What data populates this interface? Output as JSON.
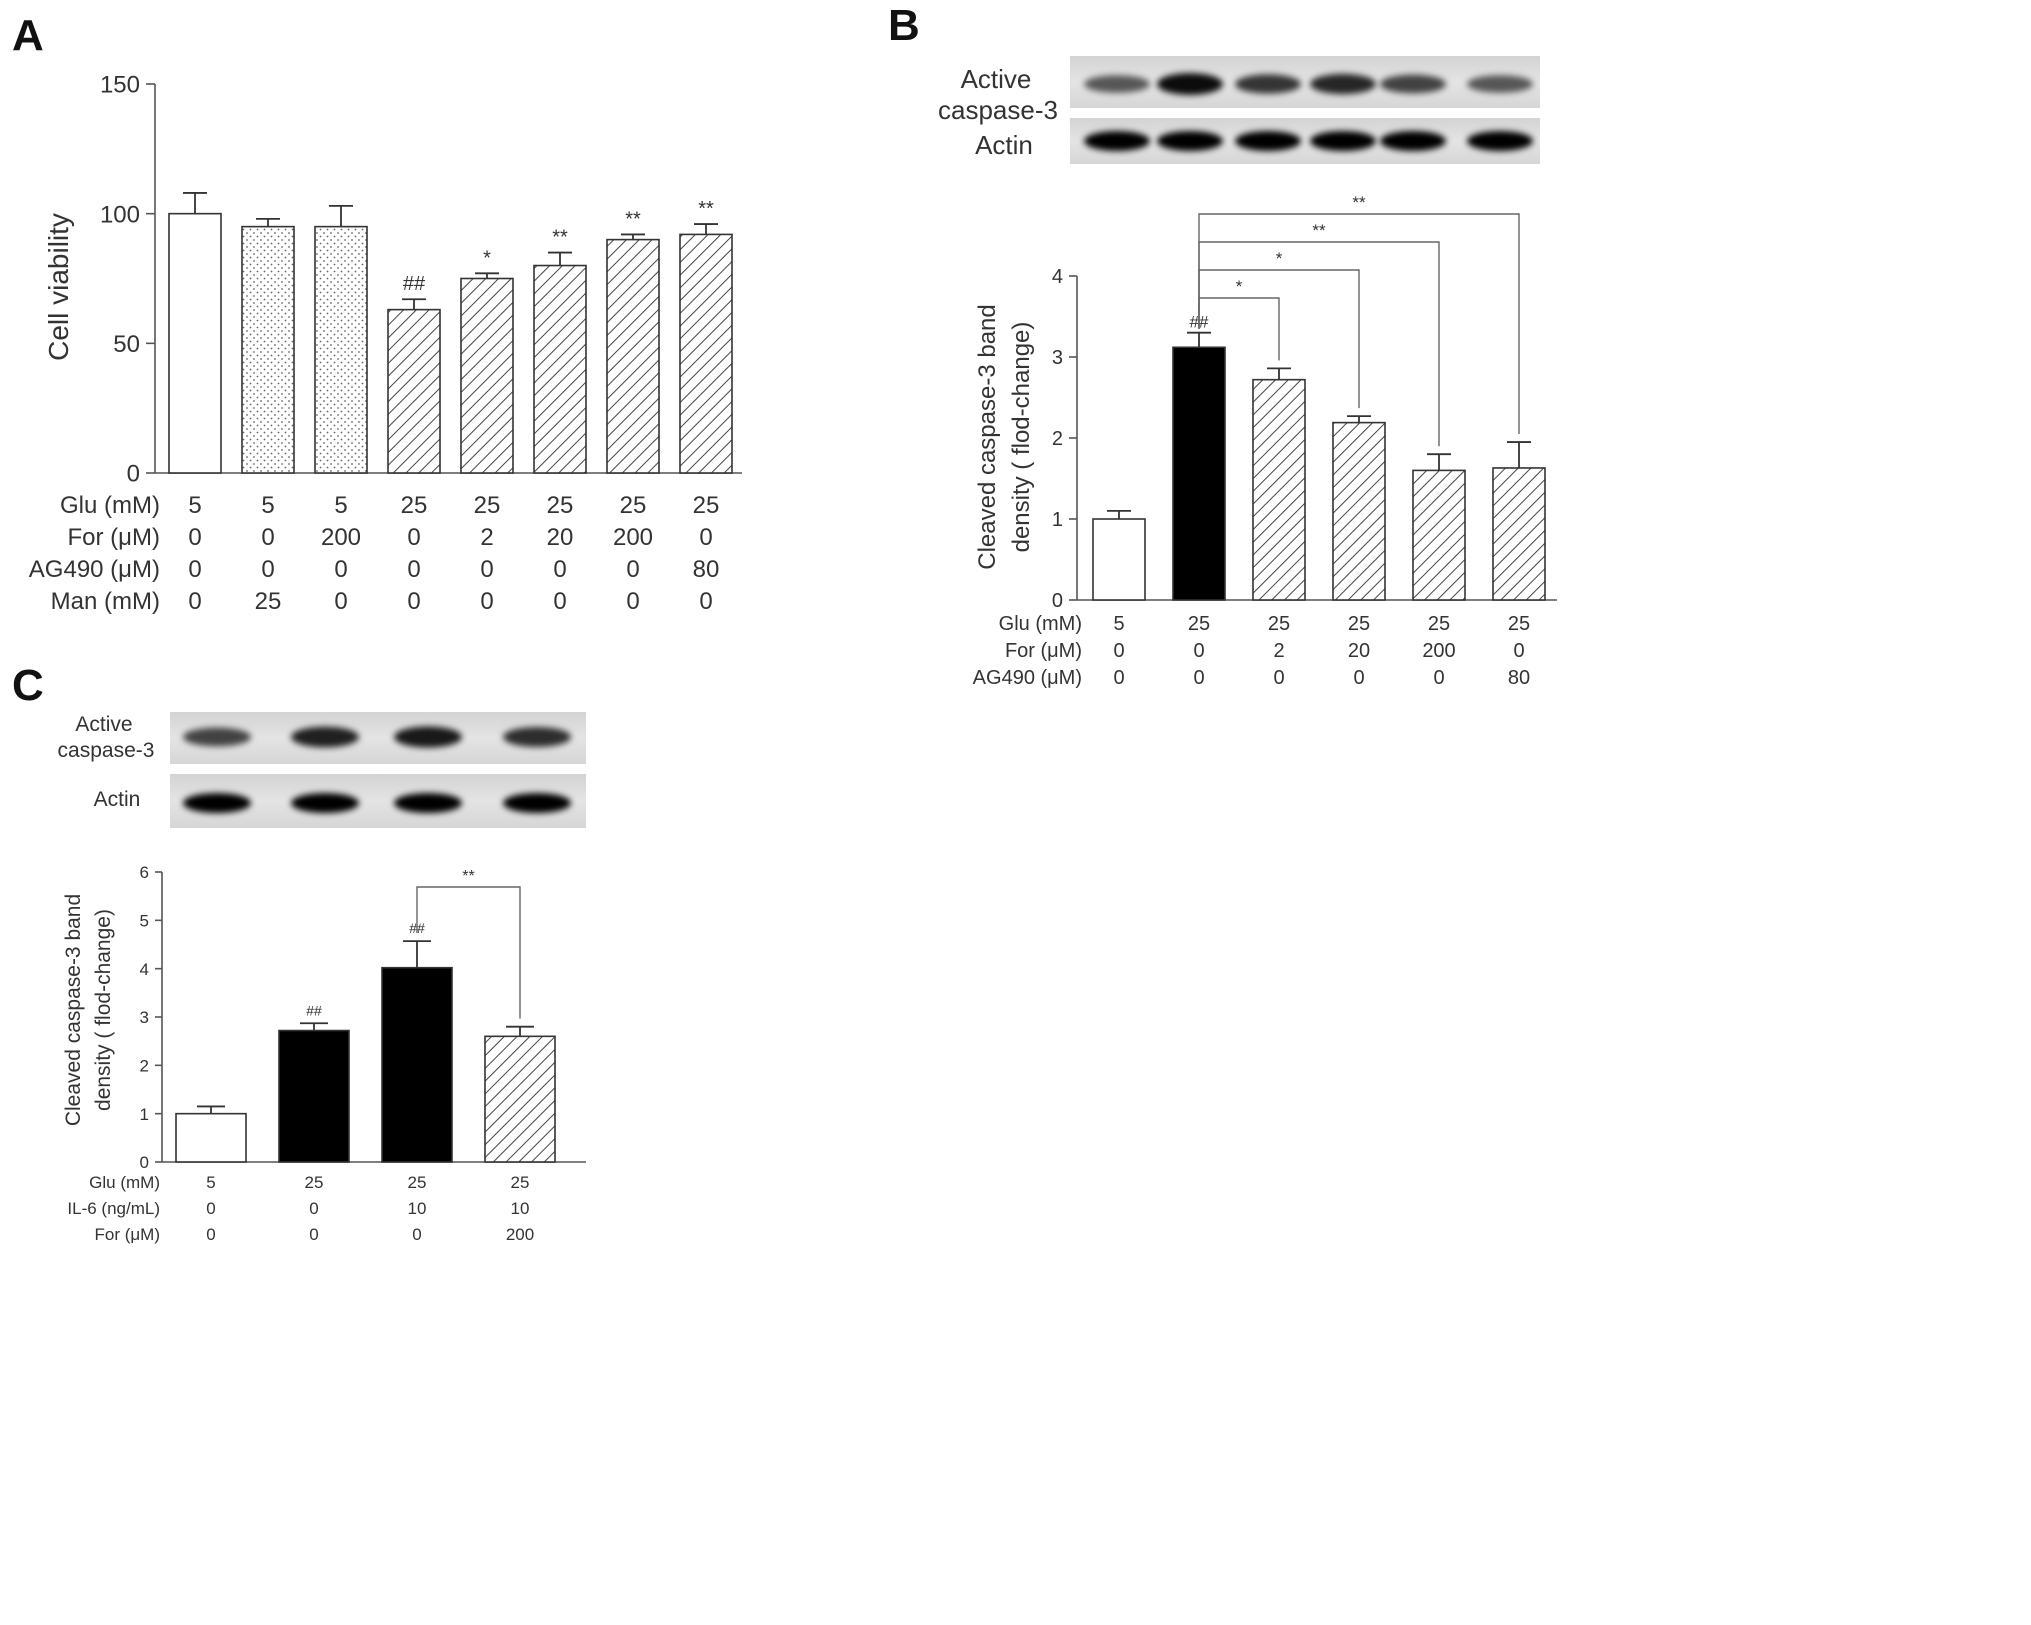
{
  "chart_data": [
    {
      "panel": "A",
      "type": "bar",
      "ylabel": "Cell viability",
      "ylim": [
        0,
        150
      ],
      "yticks": [
        "0",
        "50",
        "100",
        "150"
      ],
      "values": [
        100,
        95,
        95,
        63,
        75,
        80,
        90,
        92
      ],
      "errors": [
        8,
        3,
        8,
        4,
        2,
        5,
        2,
        4
      ],
      "fills": [
        "white",
        "dots",
        "dots",
        "hatch",
        "hatch",
        "hatch",
        "hatch",
        "hatch"
      ],
      "annotations": [
        "",
        "",
        "",
        "##",
        "*",
        "**",
        "**",
        "**"
      ],
      "conditions": [
        {
          "label": "Glu (mM)",
          "values": [
            "5",
            "5",
            "5",
            "25",
            "25",
            "25",
            "25",
            "25"
          ]
        },
        {
          "label": "For (μM)",
          "values": [
            "0",
            "0",
            "200",
            "0",
            "2",
            "20",
            "200",
            "0"
          ]
        },
        {
          "label": "AG490 (μM)",
          "values": [
            "0",
            "0",
            "0",
            "0",
            "0",
            "0",
            "0",
            "80"
          ]
        },
        {
          "label": "Man (mM)",
          "values": [
            "0",
            "25",
            "0",
            "0",
            "0",
            "0",
            "0",
            "0"
          ]
        }
      ]
    },
    {
      "panel": "B",
      "type": "bar",
      "ylabel": "Cleaved caspase-3 band density ( flod-change)",
      "ylim": [
        0,
        4
      ],
      "yticks": [
        "0",
        "1",
        "2",
        "3",
        "4"
      ],
      "values": [
        1.0,
        3.12,
        2.72,
        2.19,
        1.6,
        1.63
      ],
      "errors": [
        0.1,
        0.18,
        0.14,
        0.08,
        0.2,
        0.32
      ],
      "fills": [
        "white",
        "black",
        "hatch",
        "hatch",
        "hatch",
        "hatch"
      ],
      "annotations": [
        "",
        "##",
        "",
        "",
        "",
        ""
      ],
      "brackets": [
        {
          "from": 1,
          "to": 2,
          "label": "*"
        },
        {
          "from": 1,
          "to": 3,
          "label": "*"
        },
        {
          "from": 1,
          "to": 4,
          "label": "**"
        },
        {
          "from": 1,
          "to": 5,
          "label": "**"
        }
      ],
      "blot_labels": [
        "Active",
        "caspase-3",
        "Actin"
      ],
      "conditions": [
        {
          "label": "Glu (mM)",
          "values": [
            "5",
            "25",
            "25",
            "25",
            "25",
            "25"
          ]
        },
        {
          "label": "For (μM)",
          "values": [
            "0",
            "0",
            "2",
            "20",
            "200",
            "0"
          ]
        },
        {
          "label": "AG490 (μM)",
          "values": [
            "0",
            "0",
            "0",
            "0",
            "0",
            "80"
          ]
        }
      ]
    },
    {
      "panel": "C",
      "type": "bar",
      "ylabel": "Cleaved caspase-3 band density ( flod-change)",
      "ylim": [
        0,
        6
      ],
      "yticks": [
        "0",
        "1",
        "2",
        "3",
        "4",
        "5",
        "6"
      ],
      "values": [
        1.0,
        2.72,
        4.02,
        2.6
      ],
      "errors": [
        0.15,
        0.15,
        0.55,
        0.2
      ],
      "fills": [
        "white",
        "black",
        "black",
        "hatch"
      ],
      "annotations": [
        "",
        "##",
        "##",
        ""
      ],
      "brackets": [
        {
          "from": 2,
          "to": 3,
          "label": "**"
        }
      ],
      "blot_labels": [
        "Active",
        "caspase-3",
        "Actin"
      ],
      "conditions": [
        {
          "label": "Glu (mM)",
          "values": [
            "5",
            "25",
            "25",
            "25"
          ]
        },
        {
          "label": "IL-6 (ng/mL)",
          "values": [
            "0",
            "0",
            "10",
            "10"
          ]
        },
        {
          "label": "For (μM)",
          "values": [
            "0",
            "0",
            "0",
            "200"
          ]
        }
      ]
    }
  ]
}
